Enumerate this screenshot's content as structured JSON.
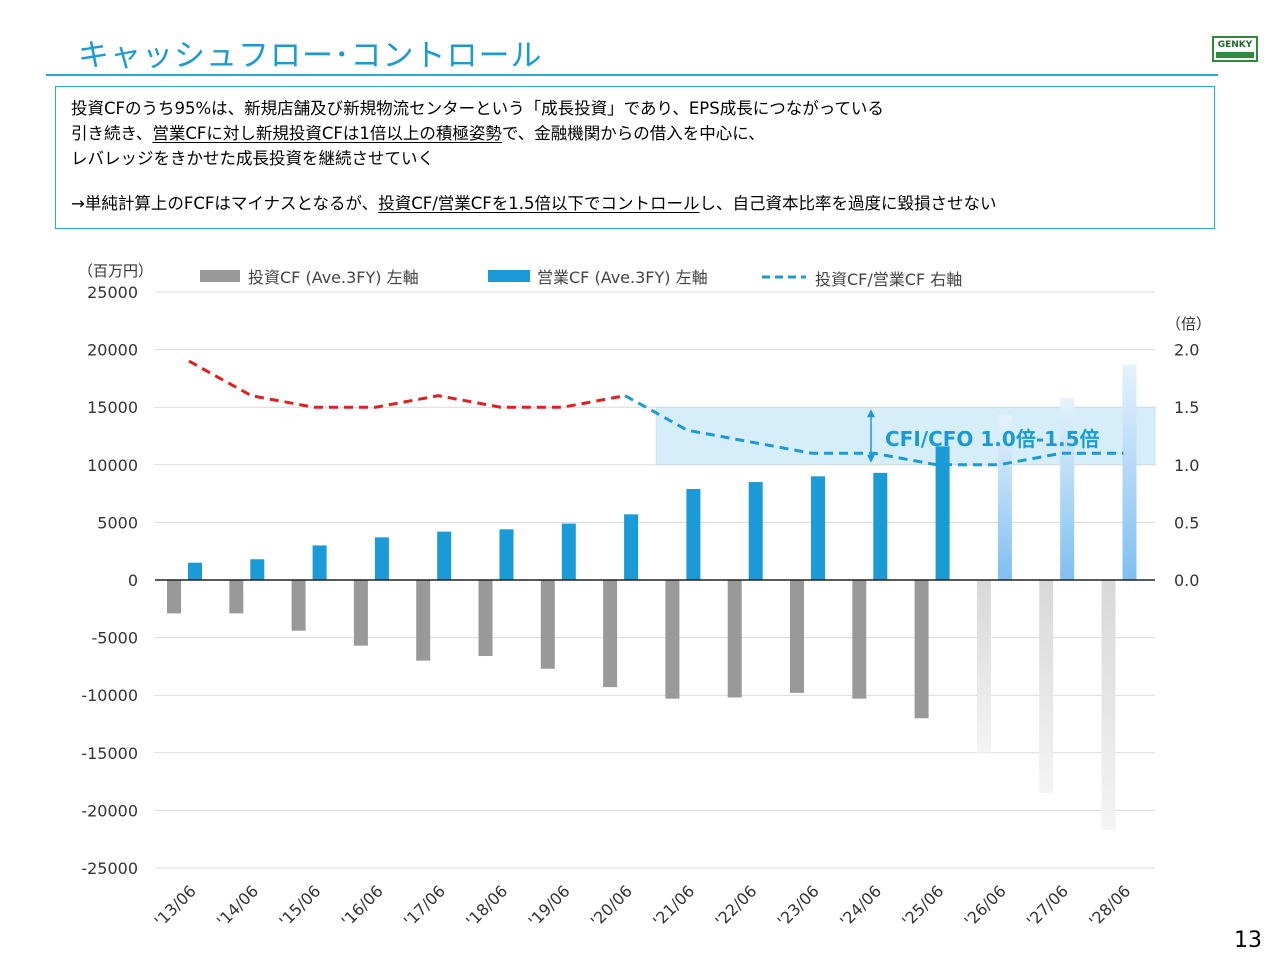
{
  "title": "キャッシュフロー･コントロール",
  "logo": {
    "text": "GENKY"
  },
  "page_number": "13",
  "message": {
    "line1": {
      "a": "投資CFのうち95%は、新規店舗及び新規物流センターという「成長投資」であり、EPS成長につながっている"
    },
    "line2": {
      "a": "引き続き、",
      "u1": "営業CFに対し新規投資CFは1倍以上の積極姿勢",
      "b": "で、金融機関からの借入を中心に、"
    },
    "line3": {
      "a": "レバレッジをきかせた成長投資を継続させていく"
    },
    "line4": {
      "a": "→単純計算上のFCFはマイナスとなるが、",
      "u1": "投資CF/営業CFを1.5倍以下でコントロール",
      "b": "し、自己資本比率を過度に毀損させない"
    }
  },
  "chart_data": {
    "type": "bar",
    "categories": [
      "'13/06",
      "'14/06",
      "'15/06",
      "'16/06",
      "'17/06",
      "'18/06",
      "'19/06",
      "'20/06",
      "'21/06",
      "'22/06",
      "'23/06",
      "'24/06",
      "'25/06",
      "'26/06",
      "'27/06",
      "'28/06"
    ],
    "forecast_from_index": 13,
    "series": [
      {
        "name": "投資CF (Ave.3FY) 左軸",
        "kind": "bar",
        "axis": "left",
        "color": "#999999",
        "forecast_color": "#e3e3e3",
        "values": [
          -2900,
          -2900,
          -4400,
          -5700,
          -7000,
          -6600,
          -7700,
          -9300,
          -10300,
          -10200,
          -9800,
          -10300,
          -12000,
          -15000,
          -18500,
          -21700
        ]
      },
      {
        "name": "営業CF (Ave.3FY) 左軸",
        "kind": "bar",
        "axis": "left",
        "color": "#1a9ad6",
        "forecast_color": "#a9d3f2",
        "values": [
          1500,
          1800,
          3000,
          3700,
          4200,
          4400,
          4900,
          5700,
          7900,
          8500,
          9000,
          9300,
          11600,
          14300,
          15800,
          18700
        ]
      },
      {
        "name": "投資CF/営業CF 右軸",
        "kind": "line",
        "axis": "right",
        "style": "dashed",
        "color_early": "#e02020",
        "color_late": "#1a9ad6",
        "switch_index": 7,
        "values": [
          1.9,
          1.6,
          1.5,
          1.5,
          1.6,
          1.5,
          1.5,
          1.6,
          1.3,
          1.2,
          1.1,
          1.1,
          1.0,
          1.0,
          1.1,
          1.1
        ]
      }
    ],
    "left_axis": {
      "unit": "（百万円）",
      "ylim": [
        -25000,
        25000
      ],
      "ticks": [
        25000,
        20000,
        15000,
        10000,
        5000,
        0,
        -5000,
        -10000,
        -15000,
        -20000,
        -25000
      ]
    },
    "right_axis": {
      "unit": "（倍）",
      "ylim": [
        -2.5,
        2.5
      ],
      "ticks": [
        2.0,
        1.5,
        1.0,
        0.5,
        0.0
      ]
    },
    "target_band": {
      "from_index": 7.5,
      "range": [
        1.0,
        1.5
      ],
      "label": "CFI/CFO 1.0倍-1.5倍",
      "color": "#d6eef9"
    },
    "grid": "horizontal",
    "legend": "top"
  }
}
